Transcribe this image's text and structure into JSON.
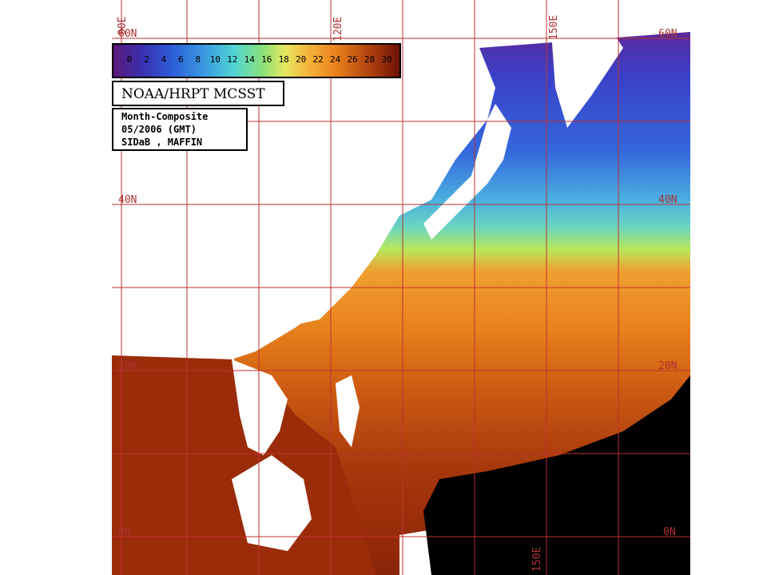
{
  "colorbar": {
    "ticks": [
      "0",
      "2",
      "4",
      "6",
      "8",
      "10",
      "12",
      "14",
      "16",
      "18",
      "20",
      "22",
      "24",
      "26",
      "28",
      "30"
    ]
  },
  "product_label": "NOAA/HRPT MCSST",
  "info": {
    "line1": "Month-Composite",
    "line2": "05/2006 (GMT)",
    "line3": "SIDaB , MAFFIN"
  },
  "grid_labels": {
    "lat_left": [
      "60N",
      "40N",
      "20N",
      "0N"
    ],
    "lat_right": [
      "60N",
      "40N",
      "20N",
      "0N"
    ],
    "lon_top": [
      "90E",
      "120E",
      "150E"
    ],
    "lon_bottom": [
      "150E"
    ]
  },
  "colors": {
    "grid": "#c03030",
    "land": "#ffffff",
    "nodata": "#000000"
  }
}
